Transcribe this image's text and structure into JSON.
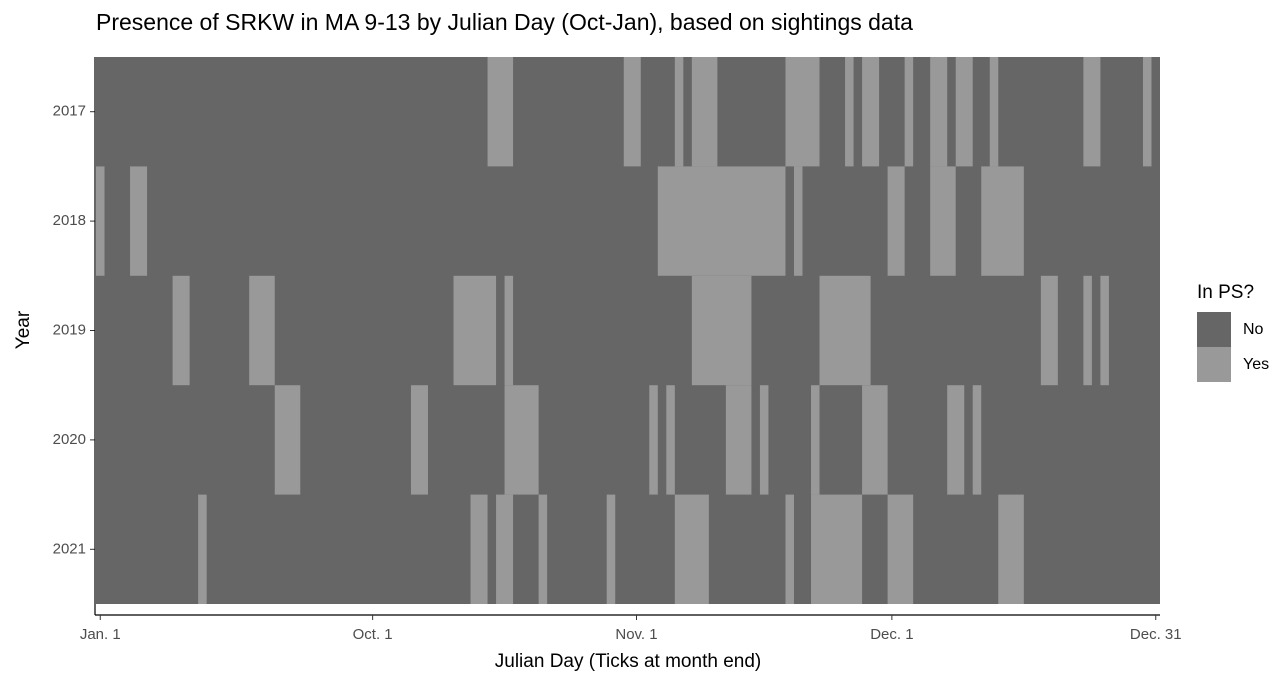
{
  "chart_data": {
    "type": "tile",
    "title": "Presence of SRKW in MA 9-13 by Julian Day (Oct-Jan), based on sightings data",
    "x_label": "Julian Day (Ticks at month end)",
    "y_label": "Year",
    "legend_title": "In PS?",
    "categories": [
      "2017",
      "2018",
      "2019",
      "2020",
      "2021"
    ],
    "xlim": [
      0.5,
      125.5
    ],
    "xticks": [
      {
        "value": 1,
        "label": "Jan. 1"
      },
      {
        "value": 33,
        "label": "Oct. 1"
      },
      {
        "value": 64,
        "label": "Nov. 1"
      },
      {
        "value": 94,
        "label": "Dec. 1"
      },
      {
        "value": 125,
        "label": "Dec. 31"
      }
    ],
    "series": [
      {
        "name": "No",
        "color": "#666666"
      },
      {
        "name": "Yes",
        "color": "#999999",
        "values": [
          [
            [
              47,
              49
            ],
            [
              63,
              64
            ],
            [
              69,
              69
            ],
            [
              71,
              73
            ],
            [
              82,
              85
            ],
            [
              89,
              89
            ],
            [
              91,
              92
            ],
            [
              96,
              96
            ],
            [
              99,
              100
            ],
            [
              102,
              103
            ],
            [
              106,
              106
            ],
            [
              117,
              118
            ],
            [
              124,
              124
            ]
          ],
          [
            [
              1,
              1
            ],
            [
              5,
              6
            ],
            [
              67,
              81
            ],
            [
              83,
              83
            ],
            [
              94,
              95
            ],
            [
              99,
              101
            ],
            [
              105,
              109
            ]
          ],
          [
            [
              10,
              11
            ],
            [
              19,
              21
            ],
            [
              43,
              47
            ],
            [
              49,
              49
            ],
            [
              71,
              77
            ],
            [
              86,
              91
            ],
            [
              112,
              113
            ],
            [
              117,
              117
            ],
            [
              119,
              119
            ]
          ],
          [
            [
              22,
              24
            ],
            [
              38,
              39
            ],
            [
              49,
              52
            ],
            [
              66,
              66
            ],
            [
              68,
              68
            ],
            [
              75,
              77
            ],
            [
              79,
              79
            ],
            [
              85,
              85
            ],
            [
              91,
              93
            ],
            [
              101,
              102
            ],
            [
              104,
              104
            ]
          ],
          [
            [
              13,
              13
            ],
            [
              45,
              46
            ],
            [
              48,
              49
            ],
            [
              53,
              53
            ],
            [
              61,
              61
            ],
            [
              69,
              72
            ],
            [
              82,
              82
            ],
            [
              85,
              90
            ],
            [
              94,
              96
            ],
            [
              107,
              109
            ]
          ]
        ]
      }
    ]
  }
}
